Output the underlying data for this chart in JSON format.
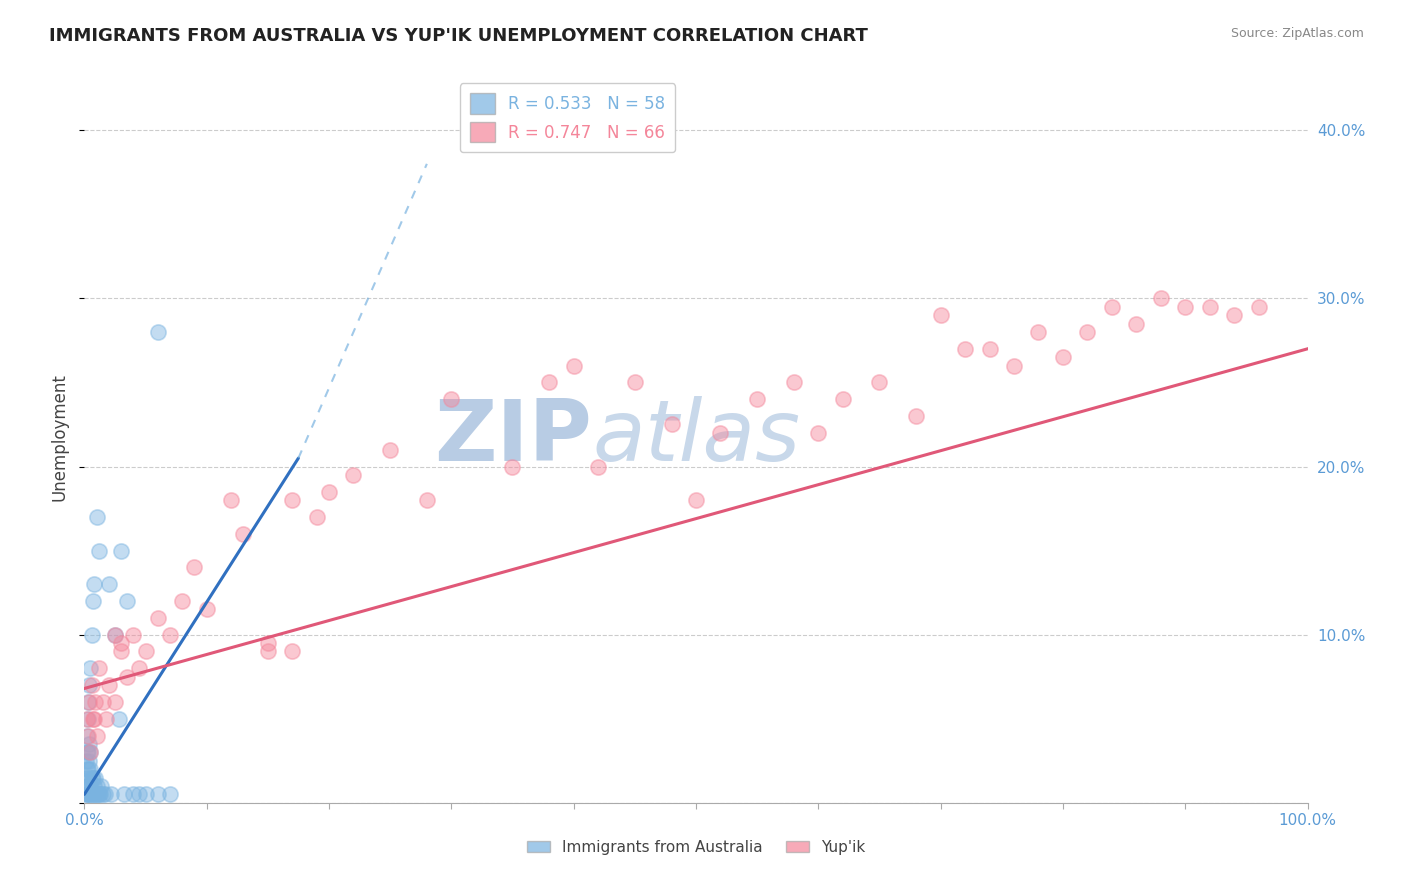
{
  "title": "IMMIGRANTS FROM AUSTRALIA VS YUP'IK UNEMPLOYMENT CORRELATION CHART",
  "source": "Source: ZipAtlas.com",
  "ylabel": "Unemployment",
  "legend_entries": [
    {
      "label": "R = 0.533   N = 58",
      "color": "#7ab3e0"
    },
    {
      "label": "R = 0.747   N = 66",
      "color": "#f4869a"
    }
  ],
  "legend_bottom": [
    {
      "label": "Immigrants from Australia",
      "color": "#7ab3e0"
    },
    {
      "label": "Yup'ik",
      "color": "#f4869a"
    }
  ],
  "yticks": [
    0.0,
    0.1,
    0.2,
    0.3,
    0.4
  ],
  "ytick_labels": [
    "",
    "10.0%",
    "20.0%",
    "30.0%",
    "40.0%"
  ],
  "watermark_zip": "ZIP",
  "watermark_atlas": "atlas",
  "blue_scatter_x": [
    0.001,
    0.001,
    0.001,
    0.002,
    0.002,
    0.002,
    0.002,
    0.002,
    0.003,
    0.003,
    0.003,
    0.003,
    0.004,
    0.004,
    0.004,
    0.004,
    0.005,
    0.005,
    0.005,
    0.005,
    0.006,
    0.006,
    0.007,
    0.007,
    0.008,
    0.008,
    0.009,
    0.009,
    0.01,
    0.01,
    0.011,
    0.012,
    0.013,
    0.014,
    0.015,
    0.017,
    0.02,
    0.022,
    0.025,
    0.028,
    0.03,
    0.032,
    0.035,
    0.04,
    0.045,
    0.05,
    0.06,
    0.07,
    0.003,
    0.003,
    0.004,
    0.005,
    0.006,
    0.007,
    0.008,
    0.01,
    0.012,
    0.06
  ],
  "blue_scatter_y": [
    0.005,
    0.015,
    0.025,
    0.005,
    0.01,
    0.02,
    0.03,
    0.04,
    0.005,
    0.01,
    0.02,
    0.03,
    0.005,
    0.015,
    0.025,
    0.035,
    0.005,
    0.01,
    0.02,
    0.03,
    0.005,
    0.015,
    0.005,
    0.015,
    0.005,
    0.01,
    0.005,
    0.015,
    0.005,
    0.01,
    0.005,
    0.005,
    0.005,
    0.01,
    0.005,
    0.005,
    0.13,
    0.005,
    0.1,
    0.05,
    0.15,
    0.005,
    0.12,
    0.005,
    0.005,
    0.005,
    0.005,
    0.005,
    0.05,
    0.06,
    0.07,
    0.08,
    0.1,
    0.12,
    0.13,
    0.17,
    0.15,
    0.28
  ],
  "pink_scatter_x": [
    0.002,
    0.003,
    0.004,
    0.005,
    0.006,
    0.007,
    0.008,
    0.009,
    0.01,
    0.012,
    0.015,
    0.018,
    0.02,
    0.025,
    0.03,
    0.035,
    0.04,
    0.045,
    0.05,
    0.06,
    0.07,
    0.08,
    0.09,
    0.1,
    0.12,
    0.13,
    0.15,
    0.17,
    0.19,
    0.2,
    0.22,
    0.25,
    0.28,
    0.3,
    0.35,
    0.38,
    0.4,
    0.42,
    0.45,
    0.48,
    0.5,
    0.52,
    0.55,
    0.58,
    0.6,
    0.62,
    0.65,
    0.68,
    0.7,
    0.72,
    0.74,
    0.76,
    0.78,
    0.8,
    0.82,
    0.84,
    0.86,
    0.88,
    0.9,
    0.92,
    0.94,
    0.96,
    0.15,
    0.17,
    0.025,
    0.03
  ],
  "pink_scatter_y": [
    0.05,
    0.04,
    0.06,
    0.03,
    0.07,
    0.05,
    0.05,
    0.06,
    0.04,
    0.08,
    0.06,
    0.05,
    0.07,
    0.06,
    0.09,
    0.075,
    0.1,
    0.08,
    0.09,
    0.11,
    0.1,
    0.12,
    0.14,
    0.115,
    0.18,
    0.16,
    0.09,
    0.18,
    0.17,
    0.185,
    0.195,
    0.21,
    0.18,
    0.24,
    0.2,
    0.25,
    0.26,
    0.2,
    0.25,
    0.225,
    0.18,
    0.22,
    0.24,
    0.25,
    0.22,
    0.24,
    0.25,
    0.23,
    0.29,
    0.27,
    0.27,
    0.26,
    0.28,
    0.265,
    0.28,
    0.295,
    0.285,
    0.3,
    0.295,
    0.295,
    0.29,
    0.295,
    0.095,
    0.09,
    0.1,
    0.095
  ],
  "blue_solid_line_x": [
    0.0,
    0.175
  ],
  "blue_solid_line_y": [
    0.005,
    0.205
  ],
  "blue_dashed_line_x": [
    0.175,
    0.28
  ],
  "blue_dashed_line_y": [
    0.205,
    0.38
  ],
  "pink_line_x": [
    0.0,
    1.0
  ],
  "pink_line_y": [
    0.068,
    0.27
  ],
  "blue_scatter_color": "#7ab3e0",
  "pink_scatter_color": "#f4869a",
  "blue_line_color": "#3070c0",
  "pink_line_color": "#e05878",
  "background_color": "#ffffff",
  "grid_color": "#cccccc",
  "title_fontsize": 13,
  "watermark_color_zip": "#b8cce4",
  "watermark_color_atlas": "#c8d8ea",
  "xmin": 0.0,
  "xmax": 1.0,
  "ymin": 0.0,
  "ymax": 0.435
}
